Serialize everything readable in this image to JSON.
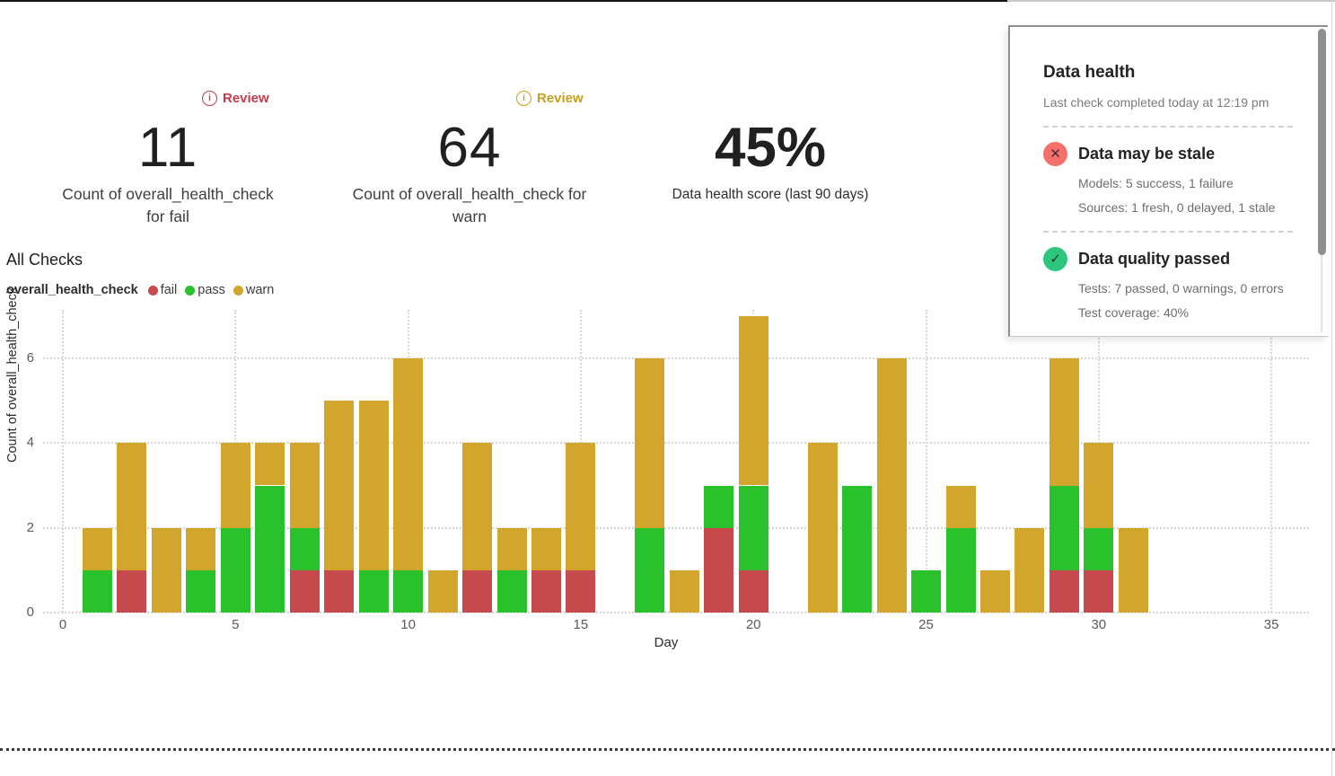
{
  "kpis": [
    {
      "badge_label": "Review",
      "badge_color": "#c23a4e",
      "value": "11",
      "label": "Count of overall_health_check for fail"
    },
    {
      "badge_label": "Review",
      "badge_color": "#c79f1f",
      "value": "64",
      "label": "Count of overall_health_check for warn"
    },
    {
      "value": "45%",
      "label": "Data health score (last 90 days)"
    }
  ],
  "chart": {
    "section_title": "All Checks",
    "legend_title": "overall_health_check"
  },
  "chart_data": {
    "type": "bar",
    "stacked": true,
    "title": "All Checks",
    "xlabel": "Day",
    "ylabel": "Count of overall_health_check",
    "x": [
      1,
      2,
      3,
      4,
      5,
      6,
      7,
      8,
      9,
      10,
      11,
      12,
      13,
      14,
      15,
      16,
      17,
      18,
      19,
      20,
      21,
      22,
      23,
      24,
      25,
      26,
      27,
      28,
      29,
      30,
      31
    ],
    "series": [
      {
        "name": "fail",
        "color": "#c6494e",
        "values": [
          0,
          1,
          0,
          0,
          0,
          0,
          1,
          1,
          0,
          0,
          0,
          1,
          0,
          1,
          1,
          0,
          0,
          0,
          2,
          1,
          0,
          0,
          0,
          0,
          0,
          0,
          0,
          0,
          1,
          1,
          0
        ]
      },
      {
        "name": "pass",
        "color": "#2bc12d",
        "values": [
          1,
          0,
          0,
          1,
          2,
          3,
          1,
          0,
          1,
          1,
          0,
          0,
          1,
          0,
          0,
          0,
          2,
          0,
          1,
          2,
          0,
          0,
          3,
          0,
          1,
          2,
          0,
          0,
          2,
          1,
          0
        ]
      },
      {
        "name": "warn",
        "color": "#d2a62d",
        "values": [
          1,
          3,
          2,
          1,
          2,
          1,
          2,
          4,
          4,
          5,
          1,
          3,
          1,
          1,
          3,
          0,
          4,
          1,
          0,
          4,
          0,
          4,
          0,
          6,
          0,
          1,
          1,
          2,
          3,
          2,
          2
        ]
      }
    ],
    "xticks": [
      0,
      5,
      10,
      15,
      20,
      25,
      30,
      35
    ],
    "yticks": [
      0,
      2,
      4,
      6
    ],
    "xlim": [
      0,
      36
    ],
    "ylim": [
      0,
      7.2
    ],
    "grid": "dotted",
    "legend_position": "top-left"
  },
  "panel": {
    "title": "Data health",
    "subtitle": "Last check completed today at 12:19 pm",
    "items": [
      {
        "status": "error",
        "icon": "x-circle-icon",
        "glyph": "✕",
        "title": "Data may be stale",
        "lines": [
          "Models: 5 success, 1 failure",
          "Sources: 1 fresh, 0 delayed, 1 stale"
        ]
      },
      {
        "status": "ok",
        "icon": "check-circle-icon",
        "glyph": "✓",
        "title": "Data quality passed",
        "lines": [
          "Tests: 7 passed, 0 warnings, 0 errors",
          "Test coverage: 40%"
        ]
      }
    ]
  }
}
